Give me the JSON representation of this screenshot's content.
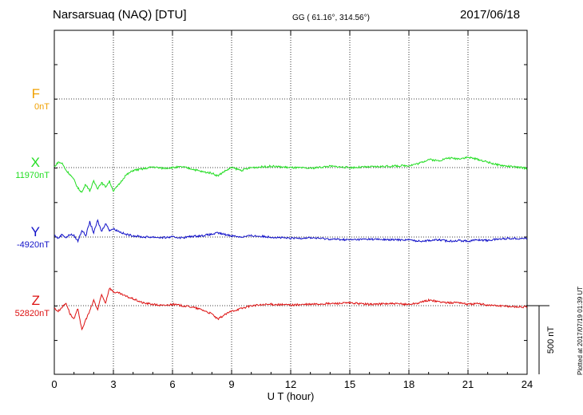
{
  "header": {
    "station": "Narsarsuaq (NAQ)  [DTU]",
    "coords": "GG ( 61.16°, 314.56°)",
    "date": "2017/06/18"
  },
  "plotted": "Plotted at 2017/07/19 01:39 UT",
  "chart_data": {
    "type": "line",
    "xlabel": "U T (hour)",
    "xlim": [
      0,
      24
    ],
    "xticks": [
      0,
      3,
      6,
      9,
      12,
      15,
      18,
      21,
      24
    ],
    "scale_bar_label": "500 nT",
    "grid": true,
    "components": [
      {
        "name": "F",
        "letter": "F",
        "baseline": "0nT",
        "color": "#f0a000"
      },
      {
        "name": "X",
        "letter": "X",
        "baseline": "11970nT",
        "color": "#22dd22"
      },
      {
        "name": "Y",
        "letter": "Y",
        "baseline": "-4920nT",
        "color": "#1010c8"
      },
      {
        "name": "Z",
        "letter": "Z",
        "baseline": "52820nT",
        "color": "#dd1111"
      }
    ],
    "series": [
      {
        "name": "X",
        "x": [
          0,
          0.2,
          0.4,
          0.6,
          0.8,
          1.0,
          1.2,
          1.4,
          1.6,
          1.8,
          2.0,
          2.2,
          2.4,
          2.6,
          2.8,
          3.0,
          3.3,
          3.6,
          4.0,
          4.5,
          5.0,
          5.5,
          6.0,
          6.5,
          7.0,
          7.5,
          8.0,
          8.3,
          8.6,
          9.0,
          9.5,
          10.0,
          11.0,
          12.0,
          13.0,
          14.0,
          15.0,
          16.0,
          17.0,
          18.0,
          18.5,
          19.0,
          19.5,
          20.0,
          20.5,
          21.0,
          21.5,
          22.0,
          22.5,
          23.0,
          24.0
        ],
        "y": [
          5,
          40,
          30,
          -20,
          -50,
          -90,
          -150,
          -180,
          -120,
          -170,
          -100,
          -150,
          -110,
          -140,
          -100,
          -170,
          -120,
          -60,
          -20,
          -10,
          5,
          -5,
          0,
          5,
          -10,
          -30,
          -40,
          -60,
          -30,
          0,
          -20,
          0,
          10,
          0,
          -5,
          10,
          0,
          5,
          10,
          15,
          30,
          60,
          50,
          70,
          65,
          75,
          60,
          40,
          20,
          10,
          -5
        ]
      },
      {
        "name": "Y",
        "x": [
          0,
          0.2,
          0.4,
          0.6,
          0.8,
          1.0,
          1.2,
          1.4,
          1.6,
          1.8,
          2.0,
          2.2,
          2.4,
          2.6,
          2.8,
          3.0,
          3.3,
          3.6,
          4.0,
          4.5,
          5.0,
          5.5,
          6.0,
          6.5,
          7.0,
          7.5,
          8.0,
          8.3,
          8.6,
          9.0,
          9.5,
          10.0,
          11.0,
          12.0,
          13.0,
          14.0,
          15.0,
          16.0,
          17.0,
          18.0,
          18.5,
          19.0,
          19.5,
          20.0,
          20.5,
          21.0,
          21.5,
          22.0,
          22.5,
          23.0,
          24.0
        ],
        "y": [
          15,
          -10,
          20,
          -5,
          20,
          10,
          -30,
          50,
          10,
          110,
          30,
          120,
          40,
          100,
          50,
          60,
          40,
          20,
          10,
          0,
          0,
          -5,
          0,
          -5,
          5,
          10,
          20,
          30,
          20,
          10,
          0,
          10,
          0,
          -10,
          -5,
          -15,
          -20,
          -15,
          -20,
          -20,
          -30,
          -25,
          -20,
          -30,
          -25,
          -30,
          -20,
          -25,
          -15,
          -10,
          -10
        ]
      },
      {
        "name": "Z",
        "x": [
          0,
          0.2,
          0.4,
          0.6,
          0.8,
          1.0,
          1.2,
          1.4,
          1.6,
          1.8,
          2.0,
          2.2,
          2.4,
          2.6,
          2.8,
          3.0,
          3.3,
          3.6,
          4.0,
          4.5,
          5.0,
          5.5,
          6.0,
          6.5,
          7.0,
          7.5,
          8.0,
          8.3,
          8.6,
          9.0,
          9.5,
          10.0,
          11.0,
          12.0,
          13.0,
          14.0,
          15.0,
          16.0,
          17.0,
          18.0,
          18.5,
          19.0,
          19.5,
          20.0,
          20.5,
          21.0,
          21.5,
          22.0,
          22.5,
          23.0,
          24.0
        ],
        "y": [
          -20,
          -40,
          -10,
          20,
          -60,
          -100,
          -20,
          -180,
          -100,
          -40,
          40,
          -30,
          80,
          20,
          130,
          100,
          90,
          70,
          50,
          20,
          10,
          0,
          10,
          0,
          -10,
          -30,
          -60,
          -100,
          -70,
          -40,
          -20,
          0,
          10,
          5,
          10,
          15,
          20,
          10,
          15,
          10,
          20,
          40,
          30,
          20,
          25,
          10,
          15,
          5,
          0,
          -5,
          -10
        ]
      }
    ]
  }
}
